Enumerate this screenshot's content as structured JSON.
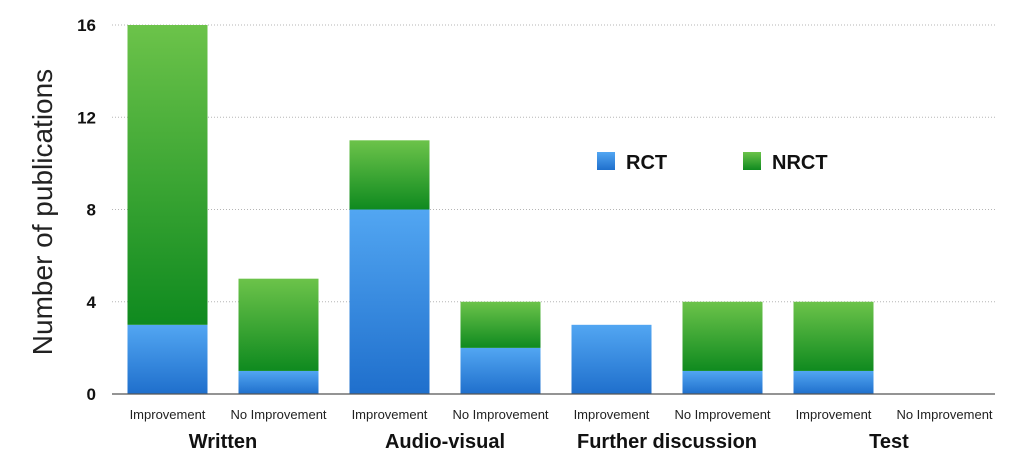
{
  "chart_data": {
    "type": "bar",
    "stacked": true,
    "ylabel": "Number of publications",
    "ylim": [
      0,
      16
    ],
    "yticks": [
      "0",
      "4",
      "8",
      "12",
      "16"
    ],
    "grid": true,
    "legend_position": "center-right",
    "groups": [
      "Written",
      "Audio-visual",
      "Further discussion",
      "Test"
    ],
    "categories": [
      "Improvement",
      "No Improvement",
      "Improvement",
      "No Improvement",
      "Improvement",
      "No Improvement",
      "Improvement",
      "No Improvement"
    ],
    "series": [
      {
        "name": "RCT",
        "color": "#3f8fe0",
        "values": [
          3,
          1,
          8,
          2,
          3,
          1,
          1,
          0
        ]
      },
      {
        "name": "NRCT",
        "color": "#34a832",
        "values": [
          13,
          4,
          3,
          2,
          0,
          3,
          3,
          0
        ]
      }
    ]
  }
}
